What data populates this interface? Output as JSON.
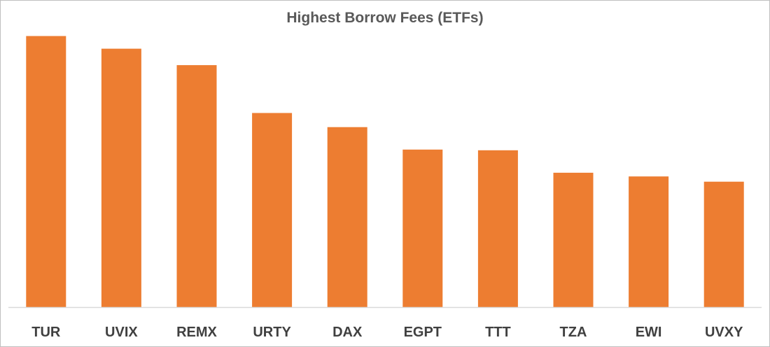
{
  "chart_data": {
    "type": "bar",
    "title": "Highest Borrow Fees (ETFs)",
    "xlabel": "",
    "ylabel": "",
    "categories": [
      "TUR",
      "UVIX",
      "REMX",
      "URTY",
      "DAX",
      "EGPT",
      "TTT",
      "TZA",
      "EWI",
      "UVXY"
    ],
    "values": [
      363,
      346,
      324,
      260,
      241,
      211,
      210,
      180,
      175,
      168
    ],
    "ylim": [
      0,
      400
    ],
    "grid": false,
    "legend": "none",
    "bar_color": "#ED7D31",
    "axis_color": "#D9D9D9"
  }
}
